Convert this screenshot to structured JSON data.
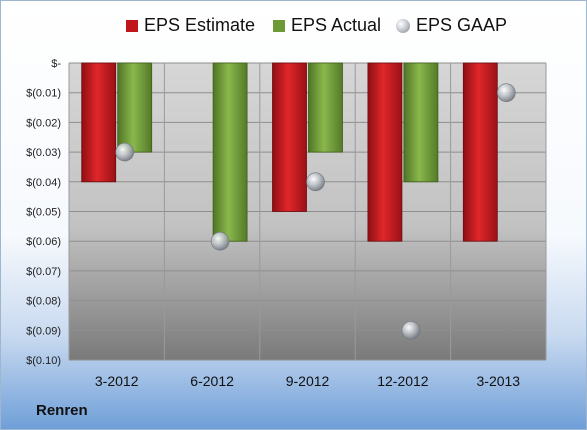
{
  "chart_data": {
    "type": "bar",
    "categories": [
      "3-2012",
      "6-2012",
      "9-2012",
      "12-2012",
      "3-2013"
    ],
    "series": [
      {
        "name": "EPS Estimate",
        "kind": "bar",
        "color": "#c0161b",
        "values": [
          -0.04,
          null,
          -0.05,
          -0.06,
          -0.06
        ]
      },
      {
        "name": "EPS Actual",
        "kind": "bar",
        "color": "#6d9a36",
        "values": [
          -0.03,
          -0.06,
          -0.03,
          -0.04,
          null
        ]
      },
      {
        "name": "EPS GAAP",
        "kind": "scatter",
        "color": "#a7adb4",
        "values": [
          -0.03,
          -0.06,
          -0.04,
          -0.09,
          -0.01
        ]
      }
    ],
    "ylim": [
      -0.1,
      0
    ],
    "yticks": [
      0,
      -0.01,
      -0.02,
      -0.03,
      -0.04,
      -0.05,
      -0.06,
      -0.07,
      -0.08,
      -0.09,
      -0.1
    ],
    "ytick_labels": [
      "$-",
      "$(0.01)",
      "$(0.02)",
      "$(0.03)",
      "$(0.04)",
      "$(0.05)",
      "$(0.06)",
      "$(0.07)",
      "$(0.08)",
      "$(0.09)",
      "$(0.10)"
    ],
    "grid": true,
    "legend_position": "top"
  },
  "footer": {
    "company": "Renren"
  }
}
